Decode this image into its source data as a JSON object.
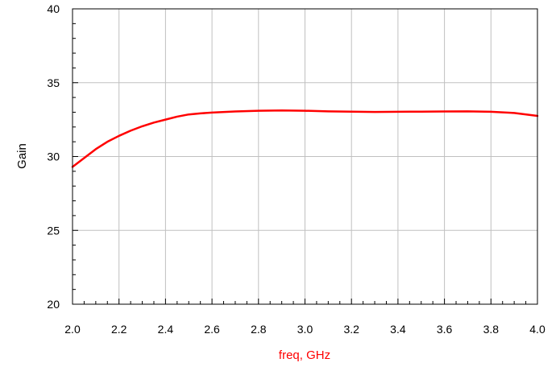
{
  "chart_data": {
    "type": "line",
    "title": "",
    "xlabel": "freq, GHz",
    "ylabel": "Gain",
    "xlim": [
      2.0,
      4.0
    ],
    "ylim": [
      20,
      40
    ],
    "x_ticks": [
      2.0,
      2.2,
      2.4,
      2.6,
      2.8,
      3.0,
      3.2,
      3.4,
      3.6,
      3.8,
      4.0
    ],
    "x_tick_labels": [
      "2.0",
      "2.2",
      "2.4",
      "2.6",
      "2.8",
      "3.0",
      "3.2",
      "3.4",
      "3.6",
      "3.8",
      "4.0"
    ],
    "y_ticks": [
      20,
      25,
      30,
      35,
      40
    ],
    "y_tick_labels": [
      "20",
      "25",
      "30",
      "35",
      "40"
    ],
    "grid": true,
    "series": [
      {
        "color": "#ff0000",
        "x": [
          2.0,
          2.05,
          2.1,
          2.15,
          2.2,
          2.25,
          2.3,
          2.35,
          2.4,
          2.45,
          2.5,
          2.55,
          2.6,
          2.7,
          2.8,
          2.9,
          3.0,
          3.1,
          3.2,
          3.3,
          3.4,
          3.5,
          3.6,
          3.7,
          3.8,
          3.9,
          4.0
        ],
        "y": [
          29.3,
          29.9,
          30.5,
          31.0,
          31.4,
          31.75,
          32.05,
          32.3,
          32.5,
          32.7,
          32.85,
          32.92,
          32.98,
          33.05,
          33.1,
          33.12,
          33.1,
          33.06,
          33.04,
          33.02,
          33.03,
          33.04,
          33.05,
          33.06,
          33.03,
          32.95,
          32.75
        ]
      }
    ],
    "colors": {
      "line": "#ff0000",
      "xlabel": "#ff0000",
      "ylabel": "#000000",
      "grid": "#c0c0c0",
      "axes": "#000000"
    }
  }
}
